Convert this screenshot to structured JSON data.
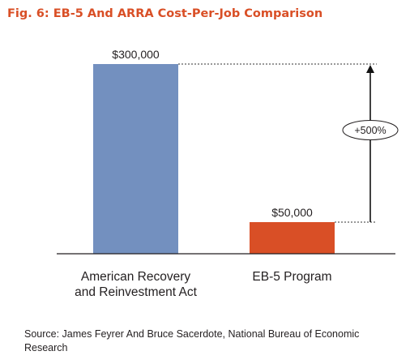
{
  "title": "Fig. 6: EB-5 And ARRA Cost-Per-Job Comparison",
  "source": "Source: James Feyrer And Bruce Sacerdote, National Bureau of Economic Research",
  "colors": {
    "title": "#d94f26",
    "bar_arra": "#7390bf",
    "bar_eb5": "#d94f26"
  },
  "chart_data": {
    "type": "bar",
    "title": "Fig. 6: EB-5 And ARRA Cost-Per-Job Comparison",
    "xlabel": "",
    "ylabel": "",
    "categories": [
      [
        "American Recovery",
        "and Reinvestment Act"
      ],
      [
        "EB-5 Program"
      ]
    ],
    "values": [
      300000,
      50000
    ],
    "value_labels": [
      "$300,000",
      "$50,000"
    ],
    "ylim": [
      0,
      300000
    ],
    "grid": false,
    "annotation": {
      "text": "+500%",
      "from_value": 50000,
      "to_value": 300000
    }
  }
}
